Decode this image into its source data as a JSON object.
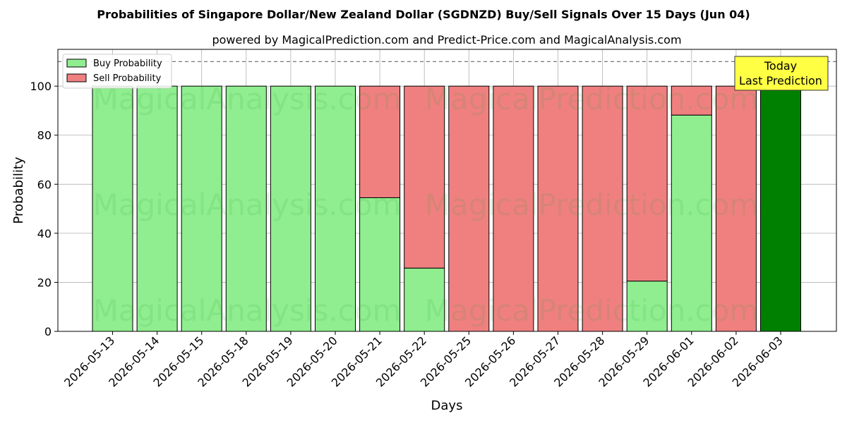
{
  "chart_data": {
    "type": "bar",
    "stacked": true,
    "title": "Probabilities of Singapore Dollar/New Zealand Dollar (SGDNZD) Buy/Sell Signals Over 15 Days (Jun 04)",
    "subtitle": "powered by MagicalPrediction.com and Predict-Price.com and MagicalAnalysis.com",
    "xlabel": "Days",
    "ylabel": "Probability",
    "ylim": [
      0,
      115
    ],
    "yticks": [
      0,
      20,
      40,
      60,
      80,
      100
    ],
    "grid": true,
    "legend_position": "top-left",
    "reference_line": 110,
    "categories": [
      "2026-05-13",
      "2026-05-14",
      "2026-05-15",
      "2026-05-18",
      "2026-05-19",
      "2026-05-20",
      "2026-05-21",
      "2026-05-22",
      "2026-05-25",
      "2026-05-26",
      "2026-05-27",
      "2026-05-28",
      "2026-05-29",
      "2026-06-01",
      "2026-06-02",
      "2026-06-03"
    ],
    "series": [
      {
        "name": "Buy Probability",
        "color": "#90ee90",
        "values": [
          100,
          100,
          100,
          100,
          100,
          100,
          54.5,
          25.8,
          0,
          0,
          0,
          0,
          20.5,
          88.2,
          0,
          100
        ]
      },
      {
        "name": "Sell Probability",
        "color": "#f08080",
        "values": [
          0,
          0,
          0,
          0,
          0,
          0,
          45.5,
          74.2,
          100,
          100,
          100,
          100,
          79.5,
          11.8,
          100,
          0
        ]
      }
    ],
    "highlight": {
      "index": 15,
      "color": "#008000"
    },
    "annotation": {
      "lines": [
        "Today",
        "Last Prediction"
      ],
      "background": "#ffff44"
    },
    "watermarks": [
      "MagicalAnalysis.com",
      "MagicalPrediction.com"
    ]
  }
}
